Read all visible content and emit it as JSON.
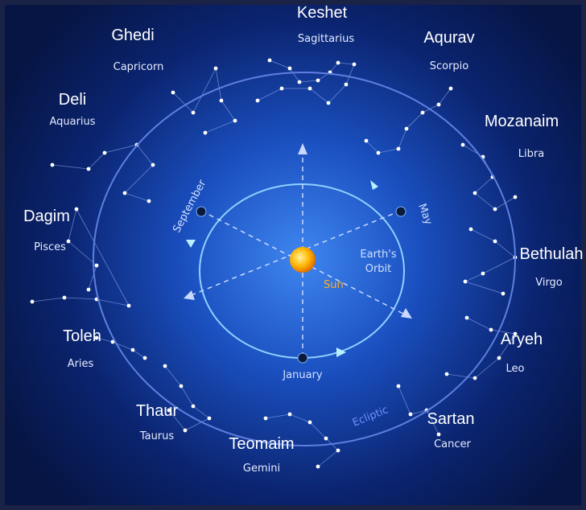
{
  "zodiac": [
    {
      "name": "Keshet",
      "latin": "Sagittarius"
    },
    {
      "name": "Aqurav",
      "latin": "Scorpio"
    },
    {
      "name": "Mozanaim",
      "latin": "Libra"
    },
    {
      "name": "Bethulah",
      "latin": "Virgo"
    },
    {
      "name": "Aryeh",
      "latin": "Leo"
    },
    {
      "name": "Sartan",
      "latin": "Cancer"
    },
    {
      "name": "Teomaim",
      "latin": "Gemini"
    },
    {
      "name": "Thaur",
      "latin": "Taurus"
    },
    {
      "name": "Toleh",
      "latin": "Aries"
    },
    {
      "name": "Dagim",
      "latin": "Pisces"
    },
    {
      "name": "Deli",
      "latin": "Aquarius"
    },
    {
      "name": "Ghedi",
      "latin": "Capricorn"
    }
  ],
  "labels": {
    "sun": "Sun",
    "orbit": [
      "Earth's",
      "Orbit"
    ],
    "january": "January",
    "may": "May",
    "september": "September",
    "ecliptic": "Ecliptic"
  }
}
